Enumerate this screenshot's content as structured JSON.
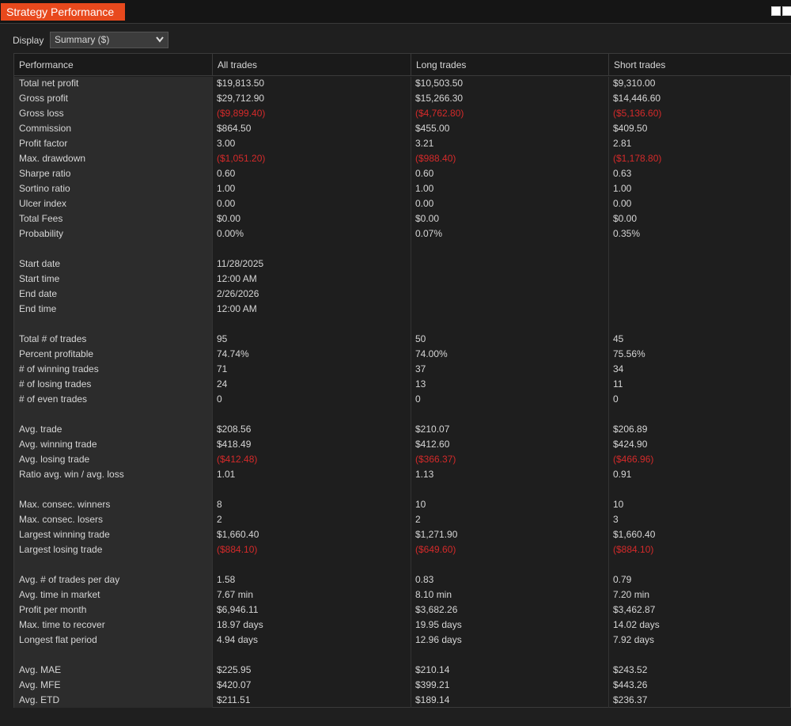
{
  "header": {
    "title": "Strategy Performance"
  },
  "display": {
    "label": "Display",
    "value": "Summary ($)"
  },
  "table": {
    "columns": [
      "Performance",
      "All trades",
      "Long trades",
      "Short trades"
    ],
    "groups": [
      [
        [
          "Total net profit",
          "$19,813.50",
          "$10,503.50",
          "$9,310.00"
        ],
        [
          "Gross profit",
          "$29,712.90",
          "$15,266.30",
          "$14,446.60"
        ],
        [
          "Gross loss",
          "($9,899.40)",
          "($4,762.80)",
          "($5,136.60)"
        ],
        [
          "Commission",
          "$864.50",
          "$455.00",
          "$409.50"
        ],
        [
          "Profit factor",
          "3.00",
          "3.21",
          "2.81"
        ],
        [
          "Max. drawdown",
          "($1,051.20)",
          "($988.40)",
          "($1,178.80)"
        ],
        [
          "Sharpe ratio",
          "0.60",
          "0.60",
          "0.63"
        ],
        [
          "Sortino ratio",
          "1.00",
          "1.00",
          "1.00"
        ],
        [
          "Ulcer index",
          "0.00",
          "0.00",
          "0.00"
        ],
        [
          "Total Fees",
          "$0.00",
          "$0.00",
          "$0.00"
        ],
        [
          "Probability",
          "0.00%",
          "0.07%",
          "0.35%"
        ]
      ],
      [
        [
          "Start date",
          "11/28/2025"
        ],
        [
          "Start time",
          "12:00 AM"
        ],
        [
          "End date",
          "2/26/2026"
        ],
        [
          "End time",
          "12:00 AM"
        ]
      ],
      [
        [
          "Total # of trades",
          "95",
          "50",
          "45"
        ],
        [
          "Percent profitable",
          "74.74%",
          "74.00%",
          "75.56%"
        ],
        [
          "# of winning trades",
          "71",
          "37",
          "34"
        ],
        [
          "# of losing trades",
          "24",
          "13",
          "11"
        ],
        [
          "# of even trades",
          "0",
          "0",
          "0"
        ]
      ],
      [
        [
          "Avg. trade",
          "$208.56",
          "$210.07",
          "$206.89"
        ],
        [
          "Avg. winning trade",
          "$418.49",
          "$412.60",
          "$424.90"
        ],
        [
          "Avg. losing trade",
          "($412.48)",
          "($366.37)",
          "($466.96)"
        ],
        [
          "Ratio avg. win / avg. loss",
          "1.01",
          "1.13",
          "0.91"
        ]
      ],
      [
        [
          "Max. consec. winners",
          "8",
          "10",
          "10"
        ],
        [
          "Max. consec. losers",
          "2",
          "2",
          "3"
        ],
        [
          "Largest winning trade",
          "$1,660.40",
          "$1,271.90",
          "$1,660.40"
        ],
        [
          "Largest losing trade",
          "($884.10)",
          "($649.60)",
          "($884.10)"
        ]
      ],
      [
        [
          "Avg. # of trades per day",
          "1.58",
          "0.83",
          "0.79"
        ],
        [
          "Avg. time in market",
          "7.67 min",
          "8.10 min",
          "7.20 min"
        ],
        [
          "Profit per month",
          "$6,946.11",
          "$3,682.26",
          "$3,462.87"
        ],
        [
          "Max. time to recover",
          "18.97 days",
          "19.95 days",
          "14.02 days"
        ],
        [
          "Longest flat period",
          "4.94 days",
          "12.96 days",
          "7.92 days"
        ]
      ],
      [
        [
          "Avg. MAE",
          "$225.95",
          "$210.14",
          "$243.52"
        ],
        [
          "Avg. MFE",
          "$420.07",
          "$399.21",
          "$443.26"
        ],
        [
          "Avg. ETD",
          "$211.51",
          "$189.14",
          "$236.37"
        ]
      ]
    ]
  }
}
